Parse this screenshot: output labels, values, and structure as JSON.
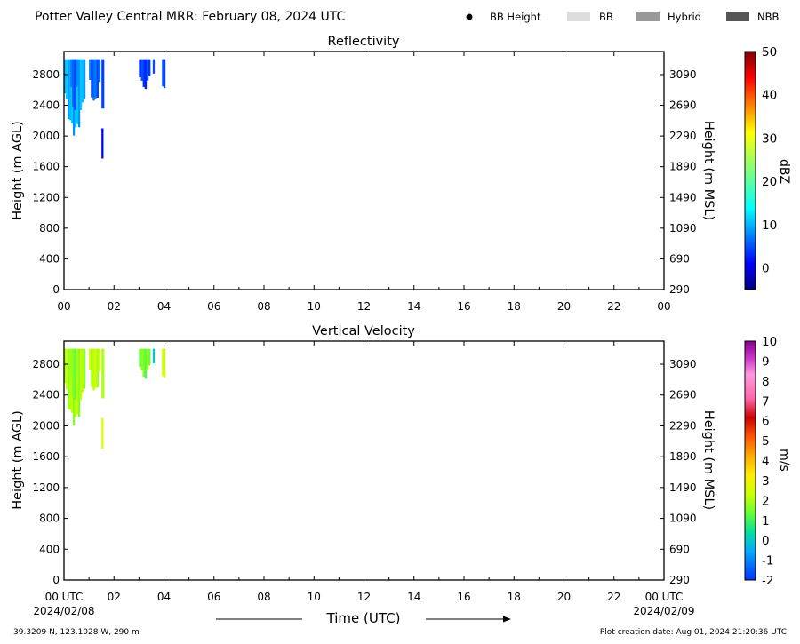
{
  "header": {
    "title": "Potter Valley Central MRR:  February 08, 2024 UTC",
    "legend": [
      {
        "label": "BB Height",
        "kind": "dot",
        "color": "#000000"
      },
      {
        "label": "BB",
        "kind": "box",
        "color": "#dcdcdc"
      },
      {
        "label": "Hybrid",
        "kind": "box",
        "color": "#999999"
      },
      {
        "label": "NBB",
        "kind": "box",
        "color": "#555555"
      }
    ]
  },
  "footer": {
    "coords": "39.3209 N, 123.1028 W, 290 m",
    "created": "Plot creation date: Aug 01, 2024 21:20:36 UTC",
    "start_date": "2024/02/08",
    "end_date": "2024/02/09"
  },
  "chart_data": [
    {
      "type": "heatmap",
      "title": "Reflectivity",
      "xlabel": "",
      "ylabel": "Height (m AGL)",
      "y2label": "Height (m MSL)",
      "x_ticks": [
        "00",
        "02",
        "04",
        "06",
        "08",
        "10",
        "12",
        "14",
        "16",
        "18",
        "20",
        "22",
        "00"
      ],
      "y_ticks": [
        "0",
        "400",
        "800",
        "1200",
        "1600",
        "2000",
        "2400",
        "2800"
      ],
      "y2_ticks": [
        "290",
        "690",
        "1090",
        "1490",
        "1890",
        "2290",
        "2690",
        "3090"
      ],
      "xlim_hours": [
        0,
        24
      ],
      "ylim_m_agl": [
        0,
        3100
      ],
      "colorbar": {
        "label": "dBZ",
        "min": -5,
        "max": 50,
        "ticks": [
          "0",
          "10",
          "20",
          "30",
          "40",
          "50"
        ],
        "tick_values": [
          0,
          10,
          20,
          30,
          40,
          50
        ],
        "colormap": "jet"
      },
      "echoes": [
        {
          "t_start": 0.0,
          "t_end": 0.85,
          "h_top": 3000,
          "h_base": 2000,
          "value": 10
        },
        {
          "t_start": 0.25,
          "t_end": 0.55,
          "h_top": 3000,
          "h_base": 2300,
          "value": 6
        },
        {
          "t_start": 1.0,
          "t_end": 1.45,
          "h_top": 3000,
          "h_base": 2400,
          "value": 6
        },
        {
          "t_start": 1.5,
          "t_end": 1.6,
          "h_top": 3000,
          "h_base": 2300,
          "value": 4
        },
        {
          "t_start": 1.5,
          "t_end": 1.57,
          "h_top": 2100,
          "h_base": 1700,
          "value": 2
        },
        {
          "t_start": 3.0,
          "t_end": 3.45,
          "h_top": 3000,
          "h_base": 2600,
          "value": 4
        },
        {
          "t_start": 3.55,
          "t_end": 3.62,
          "h_top": 3000,
          "h_base": 2800,
          "value": 5
        },
        {
          "t_start": 3.92,
          "t_end": 4.05,
          "h_top": 3000,
          "h_base": 2500,
          "value": 4
        }
      ]
    },
    {
      "type": "heatmap",
      "title": "Vertical Velocity",
      "xlabel": "Time (UTC)",
      "ylabel": "Height (m AGL)",
      "y2label": "Height (m MSL)",
      "x_ticks": [
        "00 UTC",
        "02",
        "04",
        "06",
        "08",
        "10",
        "12",
        "14",
        "16",
        "18",
        "20",
        "22",
        "00 UTC"
      ],
      "y_ticks": [
        "0",
        "400",
        "800",
        "1200",
        "1600",
        "2000",
        "2400",
        "2800"
      ],
      "y2_ticks": [
        "290",
        "690",
        "1090",
        "1490",
        "1890",
        "2290",
        "2690",
        "3090"
      ],
      "xlim_hours": [
        0,
        24
      ],
      "ylim_m_agl": [
        0,
        3100
      ],
      "colorbar": {
        "label": "m/s",
        "min": -2,
        "max": 10,
        "ticks": [
          "-2",
          "-1",
          "0",
          "1",
          "2",
          "3",
          "4",
          "5",
          "6",
          "7",
          "8",
          "9",
          "10"
        ],
        "tick_values": [
          -2,
          -1,
          0,
          1,
          2,
          3,
          4,
          5,
          6,
          7,
          8,
          9,
          10
        ],
        "colormap": "velocity"
      },
      "echoes": [
        {
          "t_start": 0.0,
          "t_end": 0.85,
          "h_top": 3000,
          "h_base": 2000,
          "value": 2.0
        },
        {
          "t_start": 0.25,
          "t_end": 0.55,
          "h_top": 3000,
          "h_base": 2300,
          "value": 1.6
        },
        {
          "t_start": 1.0,
          "t_end": 1.45,
          "h_top": 3000,
          "h_base": 2400,
          "value": 2.2
        },
        {
          "t_start": 1.5,
          "t_end": 1.6,
          "h_top": 3000,
          "h_base": 2300,
          "value": 2.0
        },
        {
          "t_start": 1.5,
          "t_end": 1.57,
          "h_top": 2100,
          "h_base": 1700,
          "value": 3.0
        },
        {
          "t_start": 3.0,
          "t_end": 3.45,
          "h_top": 3000,
          "h_base": 2600,
          "value": 1.5
        },
        {
          "t_start": 3.55,
          "t_end": 3.62,
          "h_top": 3000,
          "h_base": 2800,
          "value": 0.0
        },
        {
          "t_start": 3.92,
          "t_end": 4.05,
          "h_top": 3000,
          "h_base": 2500,
          "value": 2.2
        }
      ]
    }
  ]
}
